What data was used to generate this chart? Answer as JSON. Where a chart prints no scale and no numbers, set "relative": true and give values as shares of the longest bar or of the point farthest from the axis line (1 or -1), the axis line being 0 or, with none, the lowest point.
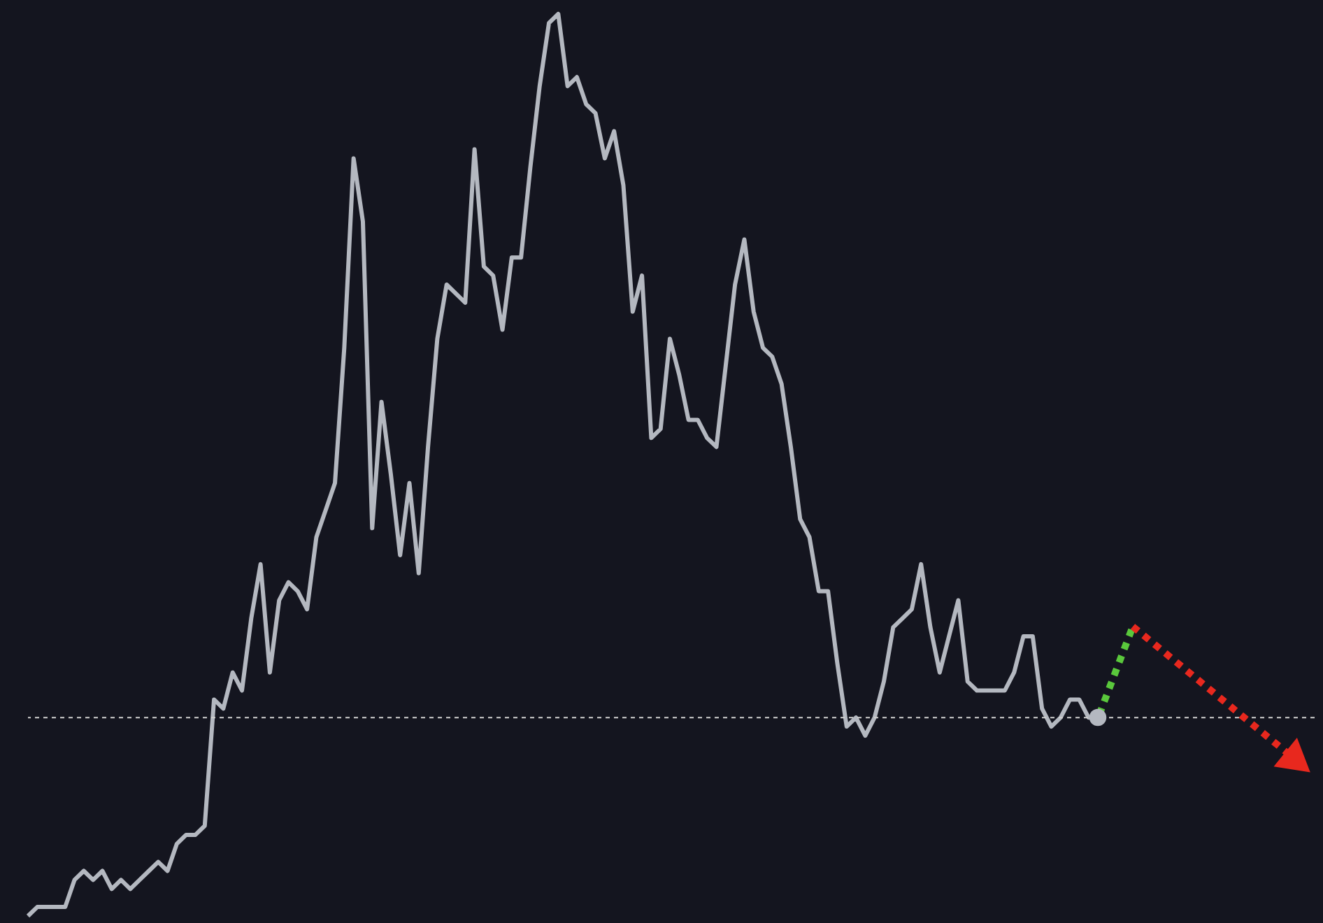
{
  "chart_data": {
    "type": "line",
    "relative": true,
    "categories": [
      null,
      null,
      null,
      null,
      null,
      null,
      null,
      null,
      null,
      null,
      null,
      null,
      null,
      null,
      null,
      null,
      null,
      null,
      null,
      null,
      null,
      null,
      null,
      null,
      null,
      null,
      null,
      null,
      null,
      null,
      null,
      null,
      null,
      null,
      null,
      null,
      null,
      null,
      null,
      null,
      null,
      null,
      null,
      null,
      null,
      null,
      null,
      null,
      null,
      null,
      null,
      null,
      null,
      null,
      null,
      null,
      null,
      null,
      null,
      null,
      null,
      null,
      null,
      null,
      null,
      null,
      null,
      null,
      null,
      null,
      null,
      null,
      null,
      null,
      null,
      null,
      null,
      null,
      null,
      null,
      null,
      null,
      null,
      null,
      null,
      null,
      null,
      null,
      null,
      null,
      null,
      null,
      null,
      null,
      null,
      null,
      null,
      null,
      null,
      null,
      null,
      null,
      null,
      null,
      null,
      null,
      null,
      null,
      null,
      null,
      null,
      null,
      null,
      null,
      null,
      null
    ],
    "series": [
      {
        "color": "#b4b8c0",
        "line_style": "solid",
        "values": [
          0,
          0.01,
          0.01,
          0.01,
          0.01,
          0.04,
          0.05,
          0.04,
          0.05,
          0.03,
          0.04,
          0.03,
          0.04,
          0.05,
          0.06,
          0.05,
          0.08,
          0.09,
          0.09,
          0.1,
          0.24,
          0.23,
          0.27,
          0.25,
          0.33,
          0.39,
          0.27,
          0.35,
          0.37,
          0.36,
          0.34,
          0.42,
          0.45,
          0.48,
          0.63,
          0.84,
          0.77,
          0.43,
          0.57,
          0.49,
          0.4,
          0.48,
          0.38,
          0.52,
          0.64,
          0.7,
          0.69,
          0.68,
          0.85,
          0.72,
          0.71,
          0.65,
          0.73,
          0.73,
          0.83,
          0.92,
          0.99,
          1,
          0.92,
          0.93,
          0.9,
          0.89,
          0.84,
          0.87,
          0.81,
          0.67,
          0.71,
          0.53,
          0.54,
          0.64,
          0.6,
          0.55,
          0.55,
          0.53,
          0.52,
          0.61,
          0.7,
          0.75,
          0.67,
          0.63,
          0.62,
          0.59,
          0.52,
          0.44,
          0.42,
          0.36,
          0.36,
          0.28,
          0.21,
          0.22,
          0.2,
          0.22,
          0.26,
          0.32,
          0.33,
          0.34,
          0.39,
          0.32,
          0.27,
          0.31,
          0.35,
          0.26,
          0.25,
          0.25,
          0.25,
          0.25,
          0.27,
          0.31,
          0.31,
          0.23,
          0.21,
          0.22,
          0.24,
          0.24,
          0.22,
          0.22
        ]
      }
    ],
    "ref_lines": [
      {
        "axis": "y",
        "value": 0.22,
        "color": "#d0d0d0",
        "line_style": "dashed"
      }
    ]
  }
}
